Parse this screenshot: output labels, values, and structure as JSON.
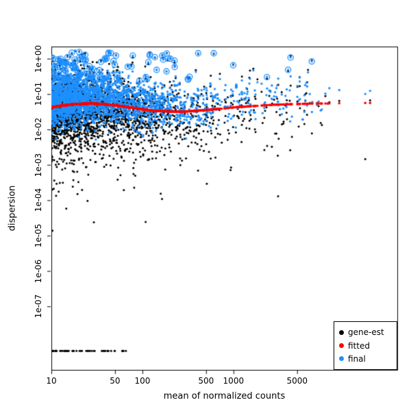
{
  "chart_data": {
    "type": "scatter",
    "title": "",
    "xlabel": "mean of normalized counts",
    "ylabel": "dispersion",
    "x_scale": "log",
    "y_scale": "log",
    "x_domain": [
      10,
      63000
    ],
    "y_domain": [
      1.6e-09,
      2.2
    ],
    "grid": false,
    "x_ticks": [
      {
        "value": 10,
        "label": "10"
      },
      {
        "value": 50,
        "label": "50"
      },
      {
        "value": 100,
        "label": "100"
      },
      {
        "value": 500,
        "label": "500"
      },
      {
        "value": 1000,
        "label": "1000"
      },
      {
        "value": 5000,
        "label": "5000"
      }
    ],
    "y_ticks": [
      {
        "value": 1e-07,
        "label": "1e-07"
      },
      {
        "value": 1e-06,
        "label": "1e-06"
      },
      {
        "value": 1e-05,
        "label": "1e-05"
      },
      {
        "value": 0.0001,
        "label": "1e-04"
      },
      {
        "value": 0.001,
        "label": "1e-03"
      },
      {
        "value": 0.01,
        "label": "1e-02"
      },
      {
        "value": 0.1,
        "label": "1e-01"
      },
      {
        "value": 1,
        "label": "1e+00"
      }
    ],
    "legend": {
      "position": "bottom-right",
      "items": [
        {
          "label": "gene-est",
          "color": "#000000"
        },
        {
          "label": "fitted",
          "color": "#ff0000"
        },
        {
          "label": "final",
          "color": "#1e90ff"
        }
      ]
    },
    "series": {
      "gene_est": {
        "name": "gene-est",
        "color": "#000000",
        "marker": "dot"
      },
      "final": {
        "name": "final",
        "color": "#1e90ff",
        "marker": "dot",
        "outliers_circled": true
      },
      "fitted": {
        "name": "fitted",
        "color": "#ff0000",
        "marker": "dot",
        "x": [
          10,
          13,
          17,
          22,
          28,
          36,
          47,
          60,
          78,
          100,
          130,
          170,
          220,
          280,
          360,
          470,
          600,
          780,
          1000,
          1300,
          1700,
          2200,
          2800,
          3600,
          4700,
          6000,
          7800,
          10000,
          13000,
          17000,
          22000,
          28000,
          36000
        ],
        "y": [
          0.042,
          0.047,
          0.051,
          0.053,
          0.054,
          0.052,
          0.049,
          0.045,
          0.041,
          0.037,
          0.034,
          0.033,
          0.032,
          0.032,
          0.033,
          0.035,
          0.037,
          0.039,
          0.042,
          0.044,
          0.046,
          0.048,
          0.05,
          0.051,
          0.052,
          0.053,
          0.054,
          0.054,
          0.055,
          0.055,
          0.056,
          0.056,
          0.056
        ]
      }
    },
    "scatter_generation": {
      "seed": 913647,
      "n_genes": 2600,
      "x_log_min": 1.0,
      "x_log_span": 3.55,
      "x_exp_rate": 1.6,
      "outlier_fraction": 0.045,
      "gene_est_spread_log10": 0.5,
      "final_spread_log10": 0.34,
      "low_tail_fraction": 0.1,
      "deep_tail_fraction": 0.008,
      "bottom_row": {
        "n": 60,
        "y": 5.5e-09,
        "x_log_min": 1.0,
        "x_log_span": 0.85
      }
    }
  }
}
